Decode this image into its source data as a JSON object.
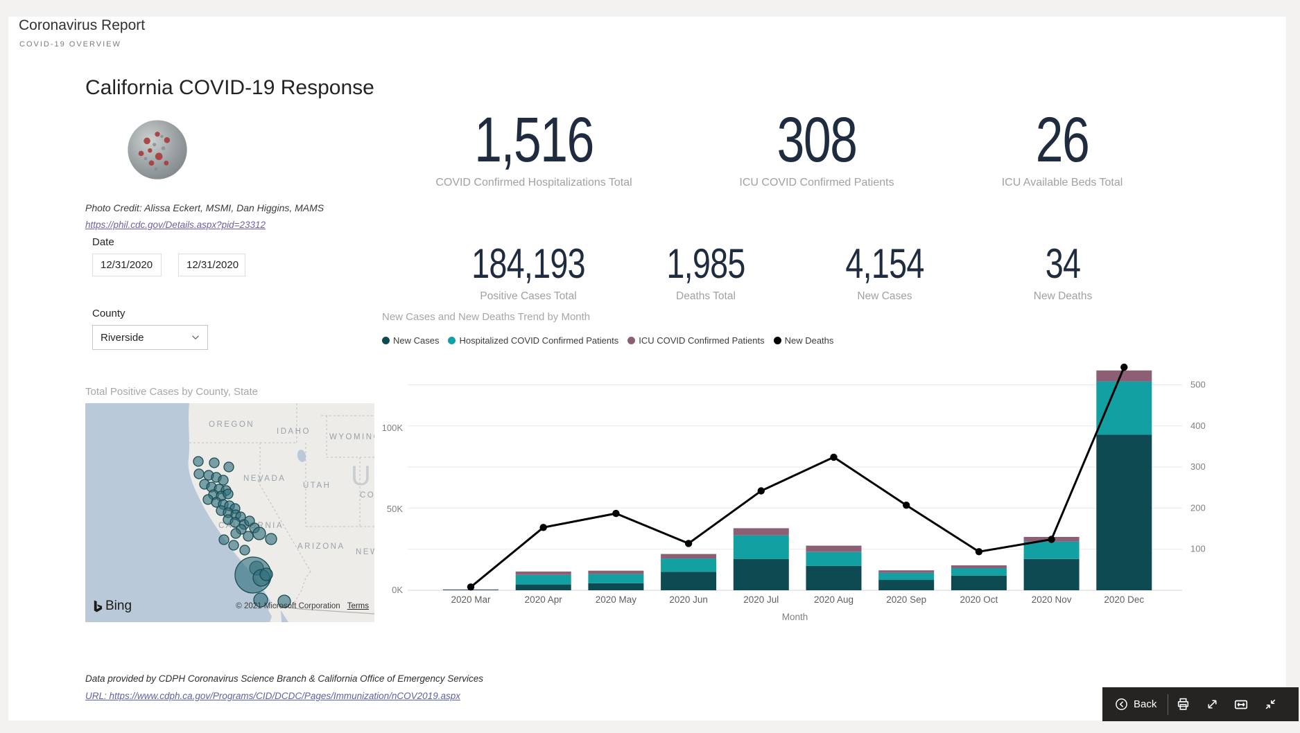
{
  "header": {
    "title": "Coronavirus Report",
    "subtitle": "COVID-19 OVERVIEW"
  },
  "page": {
    "title": "California COVID-19 Response"
  },
  "photo": {
    "credit": "Photo Credit: Alissa Eckert, MSMI, Dan Higgins, MAMS",
    "link": "https://phil.cdc.gov/Details.aspx?pid=23312"
  },
  "filters": {
    "date_label": "Date",
    "date_start": "12/31/2020",
    "date_end": "12/31/2020",
    "county_label": "County",
    "county_value": "Riverside"
  },
  "kpis_primary": [
    {
      "value": "1,516",
      "label": "COVID Confirmed Hospitalizations Total"
    },
    {
      "value": "308",
      "label": "ICU COVID Confirmed Patients"
    },
    {
      "value": "26",
      "label": "ICU Available Beds Total"
    }
  ],
  "kpis_secondary": [
    {
      "value": "184,193",
      "label": "Positive Cases Total"
    },
    {
      "value": "1,985",
      "label": "Deaths Total"
    },
    {
      "value": "4,154",
      "label": "New Cases"
    },
    {
      "value": "34",
      "label": "New Deaths"
    }
  ],
  "map": {
    "title": "Total Positive Cases by County, State",
    "state_labels": [
      "OREGON",
      "IDAHO",
      "WYOMING",
      "NEVADA",
      "UTAH",
      "UN",
      "COLOR",
      "CALIFORNIA",
      "ARIZONA",
      "NEW ME"
    ],
    "bing": "Bing",
    "copyright": "© 2021 Microsoft Corporation",
    "terms": "Terms",
    "bubbles": [
      [
        163,
        84
      ],
      [
        186,
        86
      ],
      [
        207,
        92
      ],
      [
        164,
        102
      ],
      [
        178,
        104
      ],
      [
        189,
        107
      ],
      [
        199,
        111
      ],
      [
        172,
        117
      ],
      [
        182,
        121
      ],
      [
        193,
        124
      ],
      [
        203,
        126
      ],
      [
        185,
        132
      ],
      [
        196,
        134
      ],
      [
        206,
        131
      ],
      [
        177,
        139
      ],
      [
        189,
        143
      ],
      [
        199,
        146
      ],
      [
        208,
        148
      ],
      [
        216,
        152
      ],
      [
        196,
        155
      ],
      [
        206,
        158
      ],
      [
        217,
        161
      ],
      [
        224,
        164
      ],
      [
        206,
        168
      ],
      [
        216,
        172
      ],
      [
        229,
        175
      ],
      [
        237,
        170
      ],
      [
        244,
        180
      ],
      [
        225,
        182
      ],
      [
        217,
        188
      ],
      [
        235,
        192
      ],
      [
        251,
        188,
        9
      ],
      [
        268,
        196,
        8
      ],
      [
        200,
        197
      ],
      [
        214,
        205
      ],
      [
        230,
        212
      ],
      [
        247,
        238,
        10
      ],
      [
        242,
        248,
        26
      ],
      [
        254,
        252,
        12
      ],
      [
        261,
        247,
        9
      ],
      [
        253,
        284,
        10
      ],
      [
        287,
        286,
        9
      ]
    ]
  },
  "chart_data": {
    "type": "combo: stacked column + line, dual axis",
    "title": "New Cases and New Deaths Trend by Month",
    "categories": [
      "2020 Mar",
      "2020 Apr",
      "2020 May",
      "2020 Jun",
      "2020 Jul",
      "2020 Aug",
      "2020 Sep",
      "2020 Oct",
      "2020 Nov",
      "2020 Dec"
    ],
    "bar_series": [
      {
        "name": "New Cases",
        "color": "#0d4a52",
        "values_thousands": [
          0.3,
          3.6,
          4.3,
          11.4,
          19.3,
          15.0,
          6.4,
          9.0,
          19.3,
          96.0
        ]
      },
      {
        "name": "Hospitalized COVID Confirmed Patients",
        "color": "#12a0a2",
        "values_thousands": [
          0.15,
          5.9,
          5.7,
          8.2,
          14.6,
          8.6,
          4.3,
          4.7,
          10.7,
          32.8
        ]
      },
      {
        "name": "ICU COVID Confirmed Patients",
        "color": "#8c5f75",
        "values_thousands": [
          0.05,
          2.1,
          2.1,
          2.8,
          4.4,
          3.9,
          1.6,
          1.7,
          2.9,
          6.8
        ]
      }
    ],
    "line_series": {
      "name": "New Deaths",
      "color": "#000000",
      "values": [
        8,
        153,
        187,
        114,
        242,
        324,
        207,
        94,
        124,
        543
      ]
    },
    "left_axis": {
      "tick_labels": [
        "0K",
        "50K",
        "100K"
      ],
      "tick_values_thousands": [
        0,
        50,
        100
      ],
      "max_thousands": 142
    },
    "right_axis": {
      "ticks": [
        100,
        200,
        300,
        400,
        500
      ],
      "max": 560
    },
    "xlabel": "Month",
    "legend_position": "top",
    "grid": true
  },
  "footer": {
    "credit": "Data provided by CDPH Coronavirus Science Branch & California Office of Emergency Services",
    "url": "URL: https://www.cdph.ca.gov/Programs/CID/DCDC/Pages/Immunization/nCOV2019.aspx"
  },
  "toolbar": {
    "back_label": "Back"
  }
}
